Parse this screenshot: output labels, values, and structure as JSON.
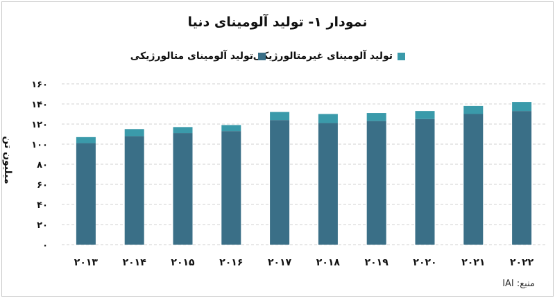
{
  "chart_data": {
    "type": "bar",
    "stacked": true,
    "title": "نمودار ۱- تولید آلومینای دنیا",
    "ylabel": "میلیون تن",
    "xlabel": "",
    "ylim": [
      0,
      160
    ],
    "yticks": [
      0,
      20,
      40,
      60,
      80,
      100,
      120,
      140,
      160
    ],
    "ytick_labels": [
      "۰",
      "۲۰",
      "۴۰",
      "۶۰",
      "۸۰",
      "۱۰۰",
      "۱۲۰",
      "۱۴۰",
      "۱۶۰"
    ],
    "categories": [
      "۲۰۱۳",
      "۲۰۱۴",
      "۲۰۱۵",
      "۲۰۱۶",
      "۲۰۱۷",
      "۲۰۱۸",
      "۲۰۱۹",
      "۲۰۲۰",
      "۲۰۲۱",
      "۲۰۲۲"
    ],
    "series": [
      {
        "name": "تولید آلومینای متالورژیکی",
        "color": "#3a6f87",
        "values": [
          101,
          108,
          111,
          113,
          124,
          121,
          123,
          125,
          130,
          133
        ]
      },
      {
        "name": "تولید آلومینای غیرمتالورژیکی",
        "color": "#3a9aaa",
        "values": [
          6,
          7,
          6,
          6,
          8,
          9,
          8,
          8,
          8,
          9
        ]
      }
    ],
    "grid": "horizontal-dashed",
    "legend_position": "top"
  },
  "source_label": "منبع: IAI"
}
